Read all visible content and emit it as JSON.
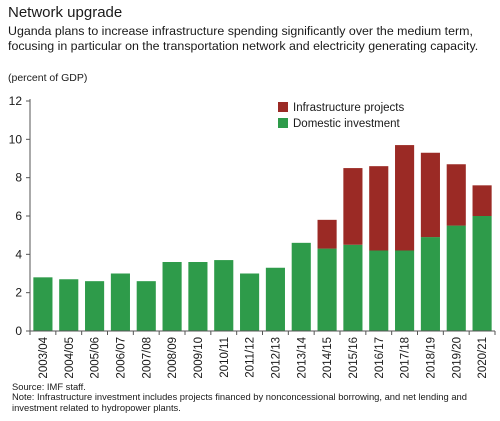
{
  "title": "Network upgrade",
  "subtitle": "Uganda plans to increase infrastructure spending significantly over the medium term, focusing in particular on the transportation network and electricity generating capacity.",
  "unit_label": "(percent of GDP)",
  "source": "Source: IMF staff.",
  "note": "Note: Infrastructure investment includes projects financed by nonconcessional borrowing, and net lending and investment related to hydropower plants.",
  "colors": {
    "domestic": "#2e9b4a",
    "projects": "#9b2a25",
    "axis": "#555555"
  },
  "chart_data": {
    "type": "bar",
    "stacked": true,
    "categories": [
      "2003/04",
      "2004/05",
      "2005/06",
      "2006/07",
      "2007/08",
      "2008/09",
      "2009/10",
      "2010/11",
      "2011/12",
      "2012/13",
      "2013/14",
      "2014/15",
      "2015/16",
      "2016/17",
      "2017/18",
      "2018/19",
      "2019/20",
      "2020/21"
    ],
    "series": [
      {
        "name": "Domestic investment",
        "values": [
          2.8,
          2.7,
          2.6,
          3.0,
          2.6,
          3.6,
          3.6,
          3.7,
          3.0,
          3.3,
          4.6,
          4.3,
          4.5,
          4.2,
          4.2,
          4.9,
          5.5,
          6.0
        ]
      },
      {
        "name": "Infrastructure projects",
        "values": [
          0,
          0,
          0,
          0,
          0,
          0,
          0,
          0,
          0,
          0,
          0,
          1.5,
          4.0,
          4.4,
          5.5,
          4.4,
          3.2,
          1.6
        ]
      }
    ],
    "legend_order": [
      "Infrastructure projects",
      "Domestic investment"
    ],
    "legend_position": "top-right",
    "ylim": [
      0,
      12
    ],
    "yticks": [
      "0",
      "2",
      "4",
      "6",
      "8",
      "10",
      "12"
    ],
    "grid": false
  }
}
